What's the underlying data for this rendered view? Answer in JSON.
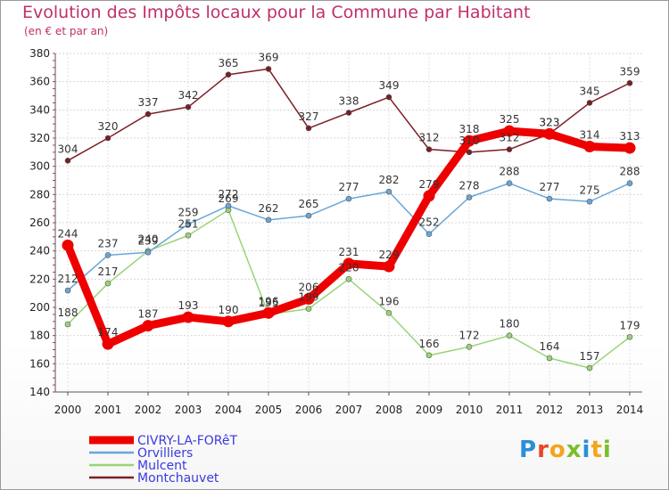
{
  "title": "Evolution des Impôts locaux pour la Commune par Habitant",
  "subtitle": "(en € et par an)",
  "logo": {
    "text": "Proxiti",
    "letter_colors": [
      "#2a8fd8",
      "#e8452a",
      "#f2a51c",
      "#7abf2a",
      "#2a8fd8",
      "#f2a51c",
      "#7abf2a"
    ]
  },
  "chart_data": {
    "type": "line",
    "title": "Evolution des Impôts locaux pour la Commune par Habitant",
    "subtitle": "(en € et par an)",
    "xlabel": "",
    "ylabel": "",
    "categories": [
      "2000",
      "2001",
      "2002",
      "2003",
      "2004",
      "2005",
      "2006",
      "2007",
      "2008",
      "2009",
      "2010",
      "2011",
      "2012",
      "2013",
      "2014"
    ],
    "ylim": [
      140,
      380
    ],
    "yticks": [
      140,
      160,
      180,
      200,
      220,
      240,
      260,
      280,
      300,
      320,
      340,
      360,
      380
    ],
    "grid": true,
    "legend_position": "bottom-left",
    "series": [
      {
        "name": "CIVRY-LA-FORêT",
        "color": "#ee0000",
        "values": [
          244,
          174,
          187,
          193,
          190,
          196,
          206,
          231,
          229,
          279,
          318,
          325,
          323,
          314,
          313
        ]
      },
      {
        "name": "Orvilliers",
        "color": "#6aa6d8",
        "values": [
          212,
          237,
          239,
          259,
          272,
          262,
          265,
          277,
          282,
          252,
          278,
          288,
          277,
          275,
          288
        ]
      },
      {
        "name": "Mulcent",
        "color": "#99d477",
        "values": [
          188,
          217,
          240,
          251,
          269,
          195,
          199,
          220,
          196,
          166,
          172,
          180,
          164,
          157,
          179
        ]
      },
      {
        "name": "Montchauvet",
        "color": "#7a1e24",
        "values": [
          304,
          320,
          337,
          342,
          365,
          369,
          327,
          338,
          349,
          312,
          310,
          312,
          323,
          345,
          359
        ]
      }
    ]
  }
}
